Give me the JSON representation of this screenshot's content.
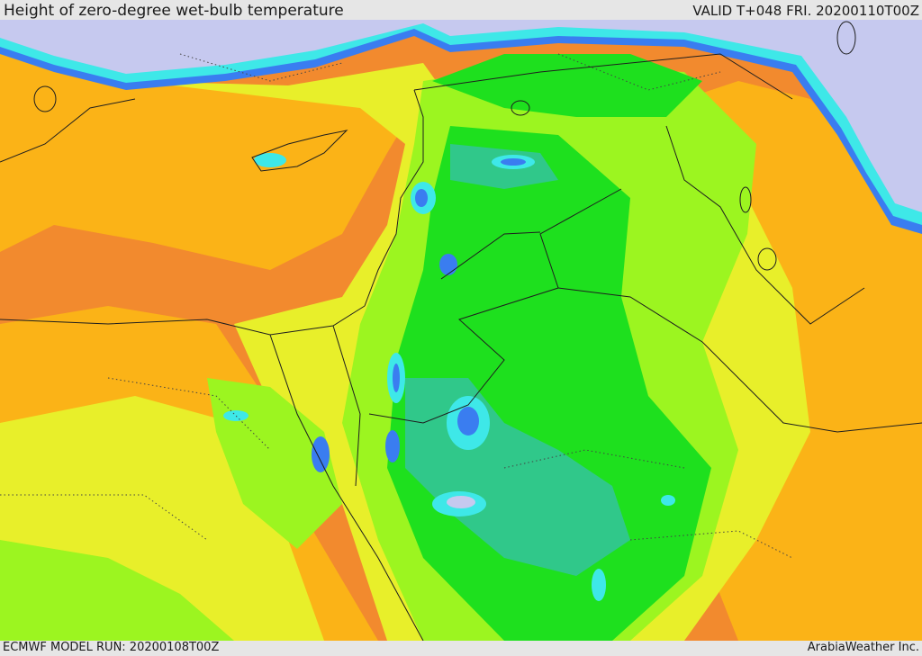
{
  "header": {
    "title": "Height of zero-degree wet-bulb temperature",
    "valid": "VALID T+048 FRI. 20200110T00Z"
  },
  "footer": {
    "model_run": "ECMWF MODEL RUN: 20200108T00Z",
    "credit": "ArabiaWeather Inc."
  },
  "colors": {
    "frame": "#e6e6e6",
    "above_orange": "#f28a2e",
    "above_amber": "#fbb317",
    "yellow": "#e8ef2a",
    "light_green": "#9cf520",
    "green": "#1ee01e",
    "teal": "#30c88a",
    "cyan": "#3ee8e8",
    "blue": "#3a7df0",
    "lavender": "#c6c9ef",
    "border_line": "#1e1e1e"
  }
}
